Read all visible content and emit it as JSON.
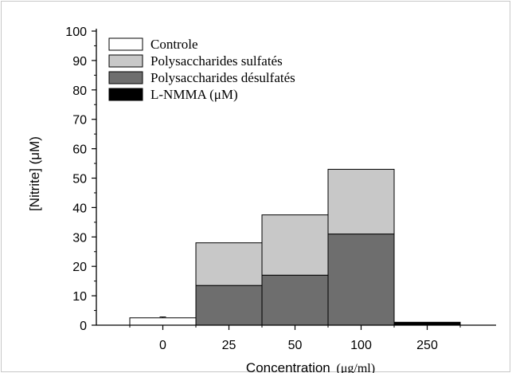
{
  "chart_data": {
    "type": "bar",
    "stacked": true,
    "categories": [
      "0",
      "25",
      "50",
      "100",
      "250"
    ],
    "series": [
      {
        "name": "Controle",
        "color": "#ffffff",
        "values": [
          2.5,
          0,
          0,
          0,
          0
        ]
      },
      {
        "name": "Polysaccharides désulfatés",
        "color": "#6e6e6e",
        "values": [
          0,
          13.5,
          17,
          31,
          0
        ]
      },
      {
        "name": "Polysaccharides sulfatés",
        "color": "#c8c8c8",
        "values": [
          0,
          14.5,
          20.5,
          22,
          0
        ]
      },
      {
        "name": "L-NMMA (μM)",
        "color": "#000000",
        "values": [
          0,
          0,
          0,
          0,
          1
        ]
      }
    ],
    "error_bars": [
      {
        "category": "0",
        "series": "Controle",
        "value": 2.5,
        "error": 0.3
      }
    ],
    "legend_order": [
      "Controle",
      "Polysaccharides sulfatés",
      "Polysaccharides désulfatés",
      "L-NMMA (μM)"
    ],
    "legend_position": "top-left",
    "ylabel": "[Nitrite] (μM)",
    "xlabel": {
      "main": "Concentration",
      "unit": "(μg/ml)"
    },
    "ylim": [
      0,
      100
    ],
    "yticks": [
      0,
      10,
      20,
      30,
      40,
      50,
      60,
      70,
      80,
      90,
      100
    ],
    "grid": false
  }
}
